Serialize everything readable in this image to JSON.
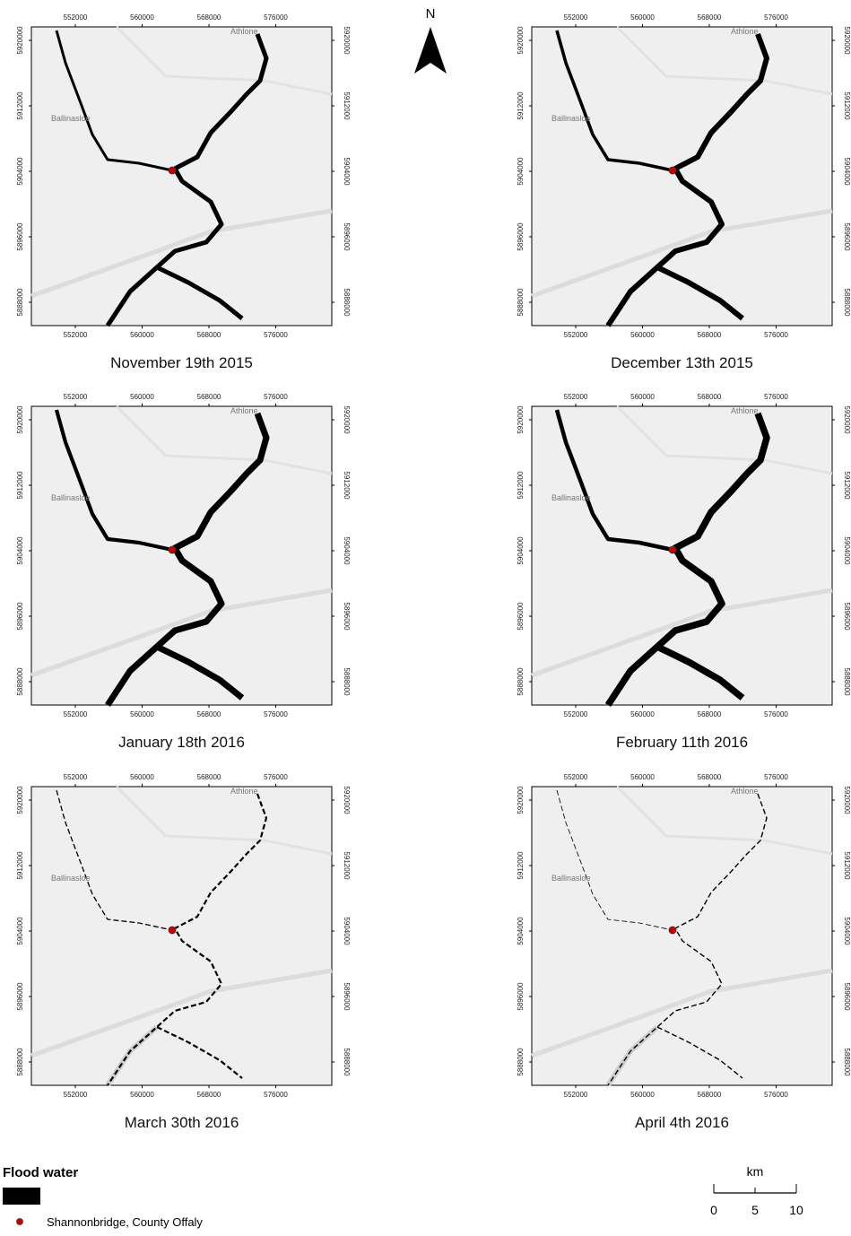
{
  "north": "N",
  "x_ticks": [
    "552000",
    "560000",
    "568000",
    "576000"
  ],
  "y_ticks": [
    "5920000",
    "5912000",
    "5904000",
    "5896000",
    "5888000"
  ],
  "places": [
    "Athlone",
    "Ballinasloe"
  ],
  "panels": [
    {
      "caption": "November 19th 2015"
    },
    {
      "caption": "December 13th 2015"
    },
    {
      "caption": "January 18th 2016"
    },
    {
      "caption": "February 11th 2016"
    },
    {
      "caption": "March 30th 2016"
    },
    {
      "caption": "April 4th 2016"
    }
  ],
  "legend": {
    "title": "Flood water",
    "point_label": "Shannonbridge, County Offaly"
  },
  "scale": {
    "unit": "km",
    "ticks": [
      "0",
      "5",
      "10"
    ]
  }
}
